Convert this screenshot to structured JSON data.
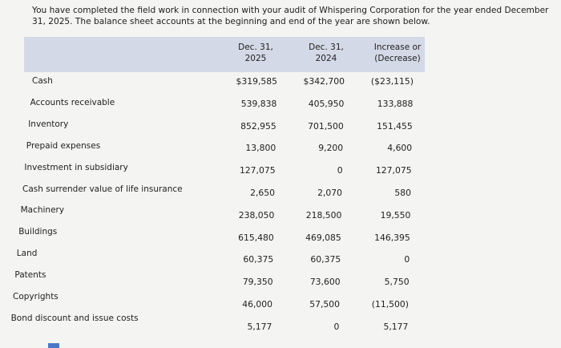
{
  "intro": "You have completed the field work in connection with your audit of Whispering Corporation for the year ended December 31, 2025. The balance sheet accounts at the beginning and end of the year are shown below.",
  "table": {
    "headers": [
      "Dec. 31, 2025",
      "Dec. 31, 2024",
      "Increase or (Decrease)"
    ],
    "rows": [
      [
        "Cash",
        "$319,585",
        "$342,700",
        "($23,115)"
      ],
      [
        "Accounts receivable",
        "539,838",
        "405,950",
        "133,888"
      ],
      [
        "Inventory",
        "852,955",
        "701,500",
        "151,455"
      ],
      [
        "Prepaid expenses",
        "13,800",
        "9,200",
        "4,600"
      ],
      [
        "Investment in subsidiary",
        "127,075",
        "0",
        "127,075"
      ],
      [
        "Cash surrender value of life insurance",
        "2,650",
        "2,070",
        "580"
      ],
      [
        "Machinery",
        "238,050",
        "218,500",
        "19,550"
      ],
      [
        "Buildings",
        "615,480",
        "469,085",
        "146,395"
      ],
      [
        "Land",
        "60,375",
        "60,375",
        "0"
      ],
      [
        "Patents",
        "79,350",
        "73,600",
        "5,750"
      ],
      [
        "Copyrights",
        "46,000",
        "57,500",
        "(11,500)"
      ],
      [
        "Bond discount and issue costs",
        "5,177",
        "0",
        "5,177"
      ]
    ]
  }
}
